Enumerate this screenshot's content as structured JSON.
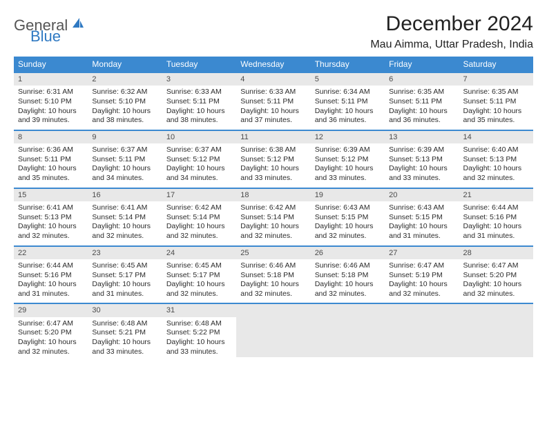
{
  "brand": {
    "word1": "General",
    "word2": "Blue",
    "accent": "#2f79c2"
  },
  "title": {
    "month": "December 2024",
    "location": "Mau Aimma, Uttar Pradesh, India"
  },
  "style": {
    "header_bg": "#3b89d0",
    "header_fg": "#ffffff",
    "row_border": "#3b89d0",
    "daynum_bg": "#e8e8e8",
    "body_bg": "#ffffff",
    "text_color": "#2a2a2a",
    "month_fontsize": 30,
    "location_fontsize": 16,
    "weekday_fontsize": 12,
    "cell_fontsize": 10.5
  },
  "weekdays": [
    "Sunday",
    "Monday",
    "Tuesday",
    "Wednesday",
    "Thursday",
    "Friday",
    "Saturday"
  ],
  "days": [
    {
      "n": 1,
      "sr": "6:31 AM",
      "ss": "5:10 PM",
      "dl": "10 hours and 39 minutes."
    },
    {
      "n": 2,
      "sr": "6:32 AM",
      "ss": "5:10 PM",
      "dl": "10 hours and 38 minutes."
    },
    {
      "n": 3,
      "sr": "6:33 AM",
      "ss": "5:11 PM",
      "dl": "10 hours and 38 minutes."
    },
    {
      "n": 4,
      "sr": "6:33 AM",
      "ss": "5:11 PM",
      "dl": "10 hours and 37 minutes."
    },
    {
      "n": 5,
      "sr": "6:34 AM",
      "ss": "5:11 PM",
      "dl": "10 hours and 36 minutes."
    },
    {
      "n": 6,
      "sr": "6:35 AM",
      "ss": "5:11 PM",
      "dl": "10 hours and 36 minutes."
    },
    {
      "n": 7,
      "sr": "6:35 AM",
      "ss": "5:11 PM",
      "dl": "10 hours and 35 minutes."
    },
    {
      "n": 8,
      "sr": "6:36 AM",
      "ss": "5:11 PM",
      "dl": "10 hours and 35 minutes."
    },
    {
      "n": 9,
      "sr": "6:37 AM",
      "ss": "5:11 PM",
      "dl": "10 hours and 34 minutes."
    },
    {
      "n": 10,
      "sr": "6:37 AM",
      "ss": "5:12 PM",
      "dl": "10 hours and 34 minutes."
    },
    {
      "n": 11,
      "sr": "6:38 AM",
      "ss": "5:12 PM",
      "dl": "10 hours and 33 minutes."
    },
    {
      "n": 12,
      "sr": "6:39 AM",
      "ss": "5:12 PM",
      "dl": "10 hours and 33 minutes."
    },
    {
      "n": 13,
      "sr": "6:39 AM",
      "ss": "5:13 PM",
      "dl": "10 hours and 33 minutes."
    },
    {
      "n": 14,
      "sr": "6:40 AM",
      "ss": "5:13 PM",
      "dl": "10 hours and 32 minutes."
    },
    {
      "n": 15,
      "sr": "6:41 AM",
      "ss": "5:13 PM",
      "dl": "10 hours and 32 minutes."
    },
    {
      "n": 16,
      "sr": "6:41 AM",
      "ss": "5:14 PM",
      "dl": "10 hours and 32 minutes."
    },
    {
      "n": 17,
      "sr": "6:42 AM",
      "ss": "5:14 PM",
      "dl": "10 hours and 32 minutes."
    },
    {
      "n": 18,
      "sr": "6:42 AM",
      "ss": "5:14 PM",
      "dl": "10 hours and 32 minutes."
    },
    {
      "n": 19,
      "sr": "6:43 AM",
      "ss": "5:15 PM",
      "dl": "10 hours and 32 minutes."
    },
    {
      "n": 20,
      "sr": "6:43 AM",
      "ss": "5:15 PM",
      "dl": "10 hours and 31 minutes."
    },
    {
      "n": 21,
      "sr": "6:44 AM",
      "ss": "5:16 PM",
      "dl": "10 hours and 31 minutes."
    },
    {
      "n": 22,
      "sr": "6:44 AM",
      "ss": "5:16 PM",
      "dl": "10 hours and 31 minutes."
    },
    {
      "n": 23,
      "sr": "6:45 AM",
      "ss": "5:17 PM",
      "dl": "10 hours and 31 minutes."
    },
    {
      "n": 24,
      "sr": "6:45 AM",
      "ss": "5:17 PM",
      "dl": "10 hours and 32 minutes."
    },
    {
      "n": 25,
      "sr": "6:46 AM",
      "ss": "5:18 PM",
      "dl": "10 hours and 32 minutes."
    },
    {
      "n": 26,
      "sr": "6:46 AM",
      "ss": "5:18 PM",
      "dl": "10 hours and 32 minutes."
    },
    {
      "n": 27,
      "sr": "6:47 AM",
      "ss": "5:19 PM",
      "dl": "10 hours and 32 minutes."
    },
    {
      "n": 28,
      "sr": "6:47 AM",
      "ss": "5:20 PM",
      "dl": "10 hours and 32 minutes."
    },
    {
      "n": 29,
      "sr": "6:47 AM",
      "ss": "5:20 PM",
      "dl": "10 hours and 32 minutes."
    },
    {
      "n": 30,
      "sr": "6:48 AM",
      "ss": "5:21 PM",
      "dl": "10 hours and 33 minutes."
    },
    {
      "n": 31,
      "sr": "6:48 AM",
      "ss": "5:22 PM",
      "dl": "10 hours and 33 minutes."
    }
  ],
  "labels": {
    "sunrise": "Sunrise:",
    "sunset": "Sunset:",
    "daylight": "Daylight:"
  },
  "layout": {
    "first_weekday_index": 0,
    "trailing_empty": 4
  }
}
